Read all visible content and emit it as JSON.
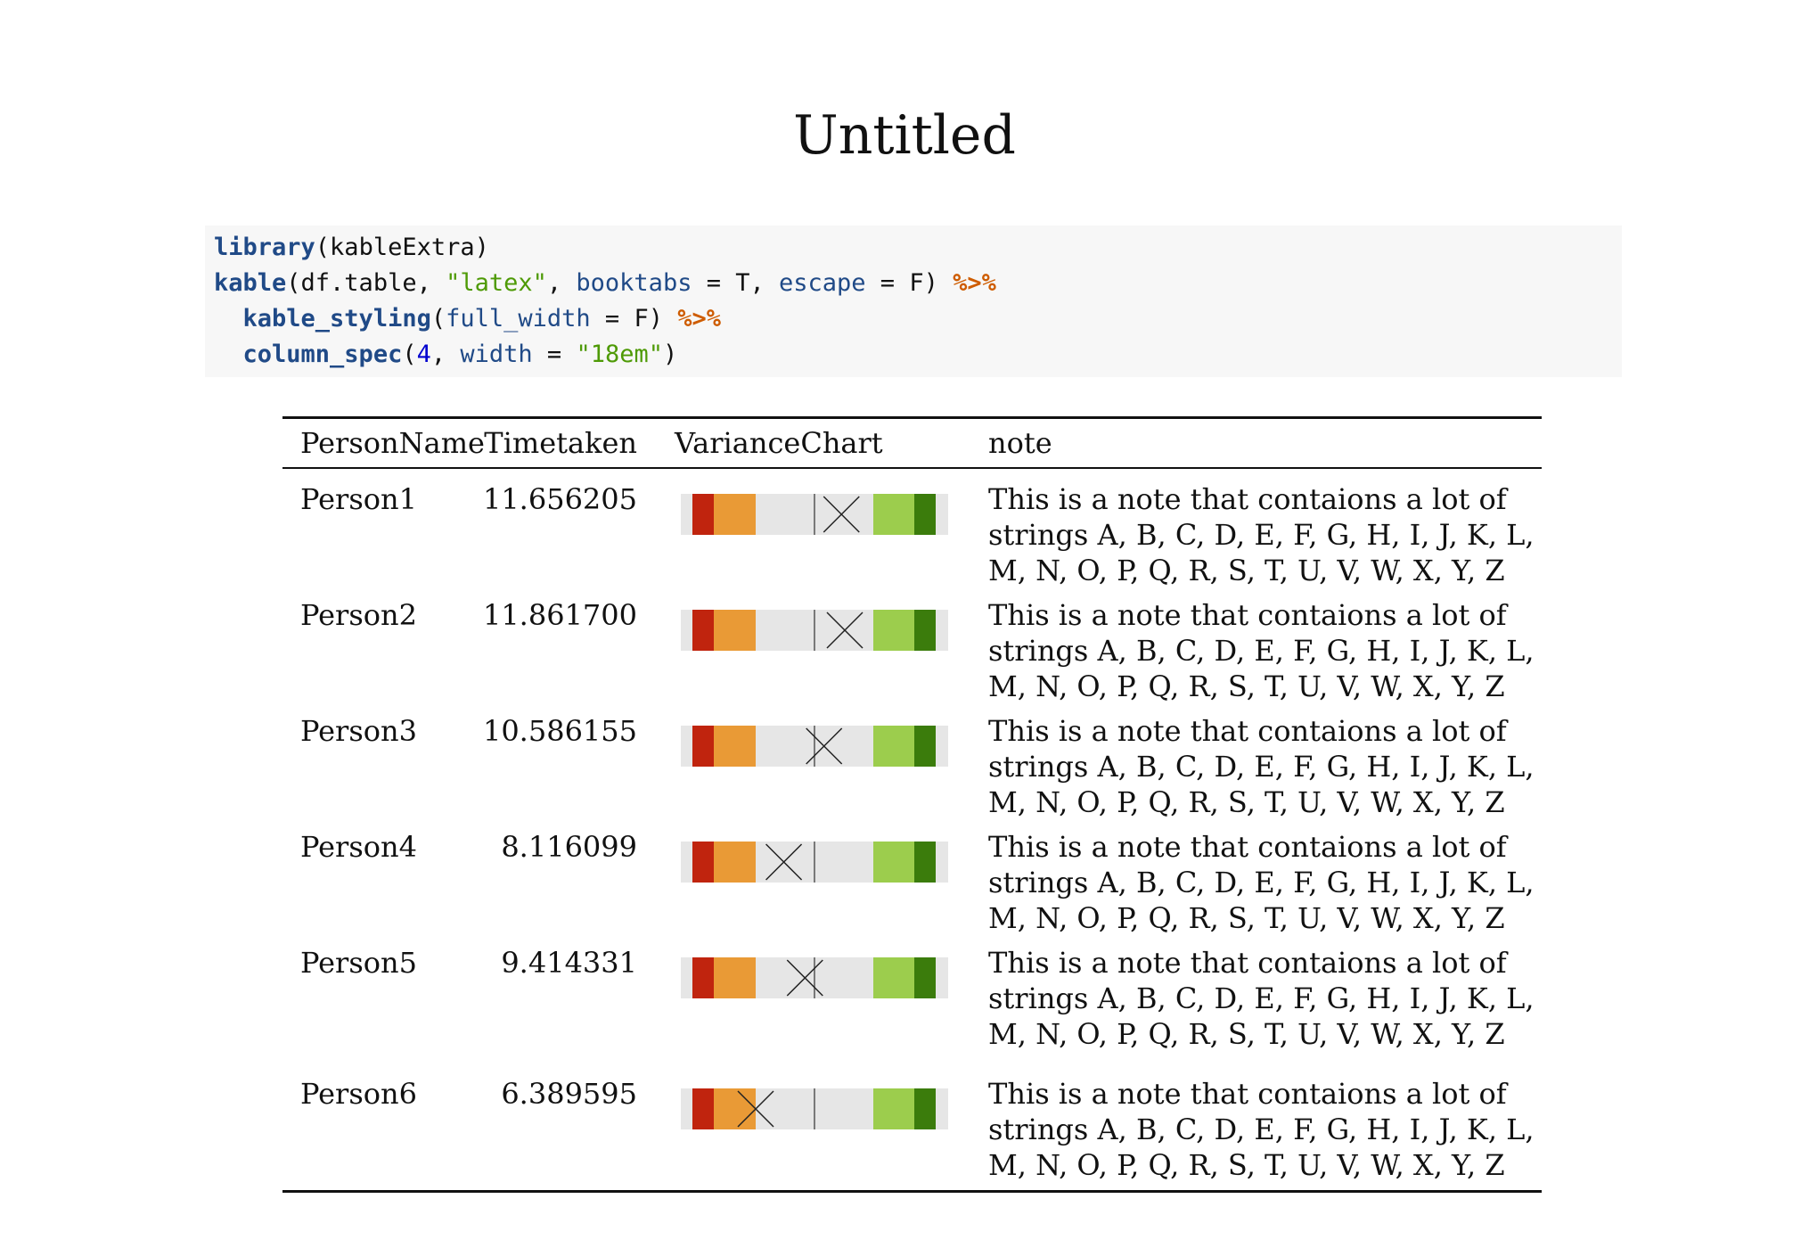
{
  "title": "Untitled",
  "code": [
    [
      {
        "t": "library",
        "c": "fn"
      },
      {
        "t": "(kableExtra)",
        "c": "txt"
      }
    ],
    [
      {
        "t": "kable",
        "c": "fn"
      },
      {
        "t": "(df.table, ",
        "c": "txt"
      },
      {
        "t": "\"latex\"",
        "c": "str"
      },
      {
        "t": ", ",
        "c": "txt"
      },
      {
        "t": "booktabs",
        "c": "arg"
      },
      {
        "t": " = T, ",
        "c": "txt"
      },
      {
        "t": "escape",
        "c": "arg"
      },
      {
        "t": " = F) ",
        "c": "txt"
      },
      {
        "t": "%>%",
        "c": "op"
      }
    ],
    [
      {
        "t": "  ",
        "c": "txt"
      },
      {
        "t": "kable_styling",
        "c": "fn"
      },
      {
        "t": "(",
        "c": "txt"
      },
      {
        "t": "full_width",
        "c": "arg"
      },
      {
        "t": " = F) ",
        "c": "txt"
      },
      {
        "t": "%>%",
        "c": "op"
      }
    ],
    [
      {
        "t": "  ",
        "c": "txt"
      },
      {
        "t": "column_spec",
        "c": "fn"
      },
      {
        "t": "(",
        "c": "txt"
      },
      {
        "t": "4",
        "c": "num"
      },
      {
        "t": ", ",
        "c": "txt"
      },
      {
        "t": "width",
        "c": "arg"
      },
      {
        "t": " = ",
        "c": "txt"
      },
      {
        "t": "\"18em\"",
        "c": "str"
      },
      {
        "t": ")",
        "c": "txt"
      }
    ]
  ],
  "table": {
    "headers": [
      "PersonName",
      "Timetaken",
      "VarianceChart",
      "note"
    ],
    "rows": [
      {
        "name": "Person1",
        "time": "11.656205",
        "marker": 11.656205,
        "note": [
          "This is a note that contaions a lot of",
          "strings A, B, C, D, E, F, G, H, I, J, K, L,",
          "M, N, O, P, Q, R, S, T, U, V, W, X, Y, Z"
        ]
      },
      {
        "name": "Person2",
        "time": "11.861700",
        "marker": 11.8617,
        "note": [
          "This is a note that contaions a lot of",
          "strings A, B, C, D, E, F, G, H, I, J, K, L,",
          "M, N, O, P, Q, R, S, T, U, V, W, X, Y, Z"
        ]
      },
      {
        "name": "Person3",
        "time": "10.586155",
        "marker": 10.586155,
        "note": [
          "This is a note that contaions a lot of",
          "strings A, B, C, D, E, F, G, H, I, J, K, L,",
          "M, N, O, P, Q, R, S, T, U, V, W, X, Y, Z"
        ]
      },
      {
        "name": "Person4",
        "time": "8.116099",
        "marker": 8.116099,
        "note": [
          "This is a note that contaions a lot of",
          "strings A, B, C, D, E, F, G, H, I, J, K, L,",
          "M, N, O, P, Q, R, S, T, U, V, W, X, Y, Z"
        ]
      },
      {
        "name": "Person5",
        "time": "9.414331",
        "marker": 9.414331,
        "note": [
          "This is a note that contaions a lot of",
          "strings A, B, C, D, E, F, G, H, I, J, K, L,",
          "M, N, O, P, Q, R, S, T, U, V, W, X, Y, Z"
        ]
      },
      {
        "name": "Person6",
        "time": "6.389595",
        "marker": 6.389595,
        "note": [
          "This is a note that contaions a lot of",
          "strings A, B, C, D, E, F, G, H, I, J, K, L,",
          "M, N, O, P, Q, R, S, T, U, V, W, X, Y, Z"
        ]
      }
    ]
  },
  "colors": {
    "text": "#111111",
    "code_bg": "#f7f7f7",
    "fn": "#204a87",
    "string": "#4e9a06",
    "number": "#0000cf",
    "operator": "#ce5c00",
    "bar_red": "#c0240e",
    "bar_orange": "#e99a36",
    "bar_grey": "#e6e6e6",
    "bar_lightgreen": "#9ccd4d",
    "bar_darkgreen": "#3b7c0c",
    "reference_line": "#555555",
    "marker": "#222222"
  }
}
